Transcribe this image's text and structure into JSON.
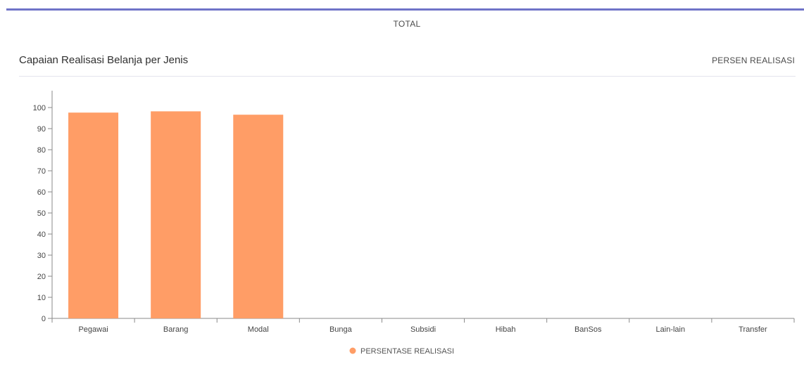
{
  "header": {
    "tab_label": "TOTAL",
    "accent_color": "#6f73c8"
  },
  "card": {
    "title": "Capaian Realisasi Belanja per Jenis",
    "right_label": "PERSEN REALISASI"
  },
  "chart_data": {
    "type": "bar",
    "categories": [
      "Pegawai",
      "Barang",
      "Modal",
      "Bunga",
      "Subsidi",
      "Hibah",
      "BanSos",
      "Lain-lain",
      "Transfer"
    ],
    "series": [
      {
        "name": "PERSENTASE REALISASI",
        "color": "#ff9d66",
        "values": [
          97.6,
          98.2,
          96.6,
          0,
          0,
          0,
          0,
          0,
          0
        ]
      }
    ],
    "yticks": [
      0,
      10,
      20,
      30,
      40,
      50,
      60,
      70,
      80,
      90,
      100
    ],
    "ylim": [
      0,
      108
    ],
    "grid": false,
    "legend_position": "bottom"
  }
}
